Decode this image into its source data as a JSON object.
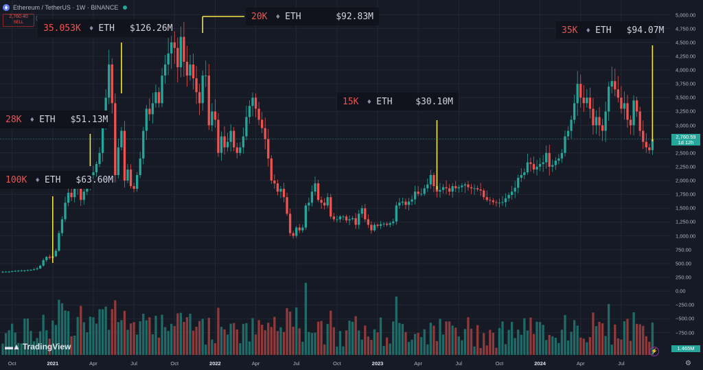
{
  "header": {
    "title": "Ethereum / TetherUS · 1W · BINANCE"
  },
  "sell": {
    "price": "2,760.40",
    "label": "SELL",
    "extra": "("
  },
  "annotations": [
    {
      "id": "a100k",
      "amount": "100K",
      "symbol": "ETH",
      "usd": "$63.60M"
    },
    {
      "id": "a28k",
      "amount": "28K",
      "symbol": "ETH",
      "usd": "$51.13M"
    },
    {
      "id": "a35k053",
      "amount": "35.053K",
      "symbol": "ETH",
      "usd": "$126.26M"
    },
    {
      "id": "a20k",
      "amount": "20K",
      "symbol": "ETH",
      "usd": "$92.83M"
    },
    {
      "id": "a15k",
      "amount": "15K",
      "symbol": "ETH",
      "usd": "$30.10M"
    },
    {
      "id": "a35k",
      "amount": "35K",
      "symbol": "ETH",
      "usd": "$94.07M"
    }
  ],
  "price_tag": {
    "price": "2,760.59",
    "countdown": "1d 12h"
  },
  "volume_tag": "1.465M",
  "brand": "TradingView",
  "colors": {
    "up": "#26a69a",
    "down": "#ef5350",
    "vol_up": "#1f6b67",
    "vol_down": "#8f3a3b",
    "marker": "#f5e642",
    "background": "#161a25"
  },
  "chart_data": {
    "type": "candlestick",
    "y_axis": {
      "min": -750,
      "max": 5000,
      "ticks": [
        "5,000.00",
        "4,750.00",
        "4,500.00",
        "4,250.00",
        "4,000.00",
        "3,750.00",
        "3,500.00",
        "3,250.00",
        "3,000.00",
        "2,750.00",
        "2,500.00",
        "2,250.00",
        "2,000.00",
        "1,750.00",
        "1,500.00",
        "1,250.00",
        "1,000.00",
        "750.00",
        "500.00",
        "250.00",
        "0.00",
        "−250.00",
        "−500.00",
        "−750.00"
      ]
    },
    "x_axis": {
      "labels": [
        {
          "text": "Oct",
          "week": 3,
          "bold": false
        },
        {
          "text": "2021",
          "week": 16,
          "bold": true
        },
        {
          "text": "Apr",
          "week": 29,
          "bold": false
        },
        {
          "text": "Jul",
          "week": 42,
          "bold": false
        },
        {
          "text": "Oct",
          "week": 55,
          "bold": false
        },
        {
          "text": "2022",
          "week": 68,
          "bold": true
        },
        {
          "text": "Apr",
          "week": 81,
          "bold": false
        },
        {
          "text": "Jul",
          "week": 94,
          "bold": false
        },
        {
          "text": "Oct",
          "week": 107,
          "bold": false
        },
        {
          "text": "2023",
          "week": 120,
          "bold": true
        },
        {
          "text": "Apr",
          "week": 133,
          "bold": false
        },
        {
          "text": "Jul",
          "week": 146,
          "bold": false
        },
        {
          "text": "Oct",
          "week": 159,
          "bold": false
        },
        {
          "text": "2024",
          "week": 172,
          "bold": true
        },
        {
          "text": "Apr",
          "week": 185,
          "bold": false
        },
        {
          "text": "Jul",
          "week": 198,
          "bold": false
        }
      ]
    },
    "close": [
      350,
      352,
      355,
      360,
      365,
      370,
      372,
      375,
      380,
      385,
      395,
      410,
      460,
      560,
      620,
      600,
      630,
      730,
      1050,
      1300,
      1600,
      1780,
      1700,
      1850,
      1950,
      1650,
      1800,
      1900,
      2100,
      2150,
      2300,
      2500,
      3000,
      3500,
      4100,
      3400,
      2100,
      2600,
      2900,
      2000,
      2200,
      1900,
      1850,
      2100,
      2400,
      2900,
      3300,
      3200,
      3400,
      3600,
      3400,
      3900,
      4100,
      4300,
      4500,
      4400,
      4050,
      4600,
      4150,
      3900,
      4100,
      3850,
      3600,
      3400,
      3900,
      3900,
      3000,
      3250,
      3100,
      2500,
      2800,
      2600,
      2700,
      2900,
      2600,
      2500,
      2600,
      2800,
      3150,
      3350,
      3500,
      3300,
      3100,
      2950,
      2750,
      2400,
      2000,
      1950,
      1800,
      1850,
      1700,
      1400,
      1050,
      1000,
      1150,
      1100,
      1150,
      1550,
      1600,
      1800,
      1950,
      1650,
      1600,
      1550,
      1700,
      1350,
      1300,
      1300,
      1350,
      1350,
      1280,
      1300,
      1320,
      1200,
      1400,
      1500,
      1300,
      1200,
      1100,
      1200,
      1180,
      1210,
      1220,
      1200,
      1230,
      1260,
      1550,
      1600,
      1620,
      1560,
      1620,
      1660,
      1800,
      1760,
      1760,
      1860,
      1930,
      2100,
      1900,
      1800,
      1830,
      1880,
      1860,
      1800,
      1900,
      1860,
      1880,
      1910,
      1930,
      1880,
      1860,
      1860,
      1840,
      1820,
      1700,
      1650,
      1640,
      1610,
      1600,
      1600,
      1610,
      1680,
      1740,
      1800,
      1870,
      2050,
      2100,
      2150,
      2330,
      2300,
      2200,
      2250,
      2300,
      2330,
      2500,
      2250,
      2280,
      2360,
      2400,
      2500,
      2800,
      2900,
      3100,
      3400,
      3750,
      3500,
      3400,
      3500,
      3300,
      3000,
      3150,
      3000,
      2900,
      3250,
      3700,
      3800,
      3650,
      3500,
      3300,
      3400,
      3100,
      3000,
      3450,
      3250,
      2900,
      2700,
      2600,
      2550,
      2750
    ]
  }
}
